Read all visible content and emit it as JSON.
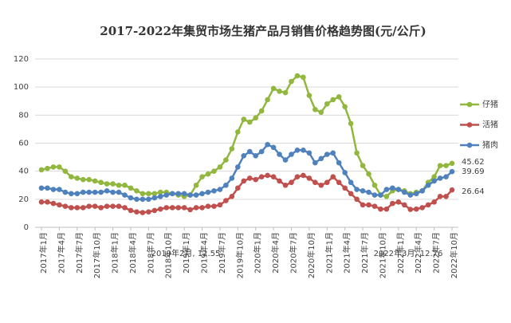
{
  "chart_data": {
    "type": "line",
    "title": "2017-2022年集贸市场生猪产品月销售价格趋势图(元/公斤)",
    "categories": [
      "2017年1月",
      null,
      null,
      "2017年4月",
      null,
      null,
      "2017年7月",
      null,
      null,
      "2017年10月",
      null,
      null,
      "2018年1月",
      null,
      null,
      "2018年4月",
      null,
      null,
      "2018年7月",
      null,
      null,
      "2018年10月",
      null,
      null,
      "2019年1月",
      null,
      null,
      "2019年4月",
      null,
      null,
      "2019年7月",
      null,
      null,
      "2019年10月",
      null,
      null,
      "2020年1月",
      null,
      null,
      "2020年4月",
      null,
      null,
      "2020年7月",
      null,
      null,
      "2020年10月",
      null,
      null,
      "2021年1月",
      null,
      null,
      "2021年4月",
      null,
      null,
      "2021年7月",
      null,
      null,
      "2021年10月",
      null,
      null,
      "2022年1月",
      null,
      null,
      "2022年4月",
      null,
      null,
      "2022年7月",
      null,
      null,
      "2022年10月"
    ],
    "series": [
      {
        "name": "仔猪",
        "color": "#92b73f",
        "values": [
          41,
          42,
          43,
          43,
          40,
          36,
          35,
          34,
          34,
          33,
          32,
          31,
          31,
          30,
          30,
          28,
          26,
          24,
          24,
          24,
          25,
          25,
          24,
          23,
          22,
          23,
          30,
          36,
          38,
          40,
          43,
          48,
          56,
          68,
          77,
          75,
          78,
          83,
          91,
          99,
          97,
          96,
          104,
          108,
          107,
          94,
          84,
          82,
          88,
          91,
          93,
          86,
          74,
          53,
          44,
          38,
          30,
          23,
          22,
          26,
          27,
          26,
          24,
          25,
          26,
          32,
          36,
          44,
          44,
          45.62
        ]
      },
      {
        "name": "活猪",
        "color": "#c0504d",
        "values": [
          18,
          18,
          17,
          16,
          15,
          14,
          14,
          14,
          15,
          15,
          14,
          15,
          15,
          15,
          14,
          12,
          11,
          10.5,
          11,
          12,
          13,
          14,
          14,
          14,
          14,
          12.55,
          14,
          14,
          15,
          15,
          16,
          19,
          22,
          28,
          33,
          35,
          34,
          36,
          37,
          36,
          33,
          30,
          32,
          36,
          37,
          35,
          32,
          30,
          32,
          36,
          32,
          28,
          24,
          20,
          16,
          16,
          15,
          13,
          13,
          17,
          18,
          16,
          12.76,
          13,
          14,
          16,
          18,
          22,
          22,
          26.64
        ]
      },
      {
        "name": "猪肉",
        "color": "#4f81bd",
        "values": [
          28,
          28,
          27,
          27,
          25,
          24,
          24,
          25,
          25,
          25,
          25,
          26,
          25,
          25,
          23,
          21,
          20,
          20,
          20,
          21,
          22,
          23,
          24,
          24,
          24,
          23,
          23,
          24,
          25,
          26,
          27,
          30,
          35,
          43,
          51,
          54,
          51,
          54,
          59,
          57,
          52,
          48,
          52,
          55,
          55,
          53,
          46,
          49,
          52,
          53,
          46,
          39,
          32,
          27,
          26,
          25,
          23,
          23,
          27,
          28,
          27,
          25,
          23,
          24,
          26,
          30,
          33,
          35,
          36,
          39.69
        ]
      }
    ],
    "annotations": [
      "2019年2月, 12.55",
      "2022年3月, 12.76"
    ],
    "ylim": [
      0,
      120
    ],
    "yticks": [
      0,
      20,
      40,
      60,
      80,
      100,
      120
    ],
    "grid": true,
    "legend": "right"
  }
}
